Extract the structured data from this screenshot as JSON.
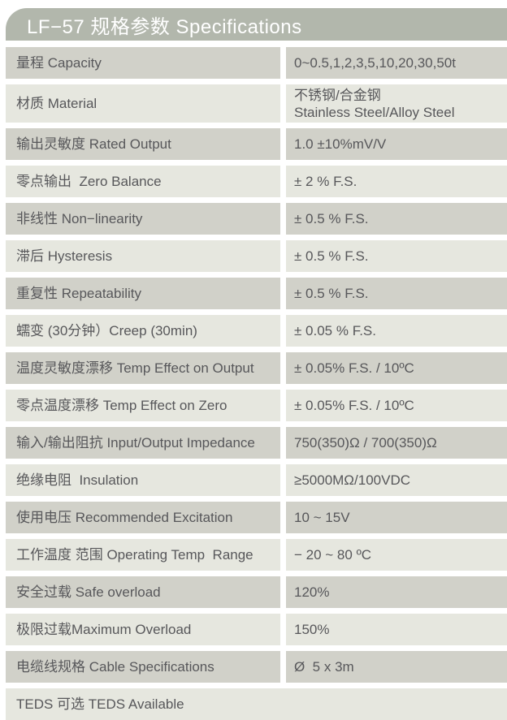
{
  "header": {
    "title": "LF−57 规格参数 Specifications"
  },
  "table": {
    "rows": [
      {
        "label": "量程 Capacity",
        "value": "0~0.5,1,2,3,5,10,20,30,50t"
      },
      {
        "label": "材质 Material",
        "value": [
          "不锈钢/合金钢",
          "Stainless Steel/Alloy Steel"
        ],
        "tall": true
      },
      {
        "label": "输出灵敏度 Rated Output",
        "value": "1.0 ±10%mV/V"
      },
      {
        "label": "零点输出  Zero Balance",
        "value": "± 2 % F.S."
      },
      {
        "label": "非线性 Non−linearity",
        "value": "± 0.5 % F.S."
      },
      {
        "label": "滞后 Hysteresis",
        "value": "± 0.5 % F.S."
      },
      {
        "label": "重复性 Repeatability",
        "value": "± 0.5 % F.S."
      },
      {
        "label": "蠕变 (30分钟）Creep (30min)",
        "value": "± 0.05 % F.S."
      },
      {
        "label": "温度灵敏度漂移 Temp Effect on Output",
        "value": "± 0.05% F.S. / 10ºC"
      },
      {
        "label": "零点温度漂移 Temp Effect on Zero",
        "value": "± 0.05% F.S. / 10ºC"
      },
      {
        "label": "输入/输出阻抗 Input/Output Impedance",
        "value": "750(350)Ω / 700(350)Ω"
      },
      {
        "label": "绝缘电阻  Insulation",
        "value": "≥5000MΩ/100VDC"
      },
      {
        "label": "使用电压 Recommended Excitation",
        "value": "10 ~ 15V"
      },
      {
        "label": "工作温度 范围 Operating Temp  Range",
        "value": "− 20 ~ 80 ºC"
      },
      {
        "label": "安全过载 Safe overload",
        "value": "120%"
      },
      {
        "label": "极限过载Maximum Overload",
        "value": "150%"
      },
      {
        "label": "电缆线规格 Cable Specifications",
        "value": "Ø  5 x 3m"
      },
      {
        "label": "TEDS 可选 TEDS Available",
        "value": null,
        "full_width": true
      }
    ]
  },
  "colors": {
    "header_bg": "#b2b7ac",
    "header_text": "#ffffff",
    "row_dark": "#d1d1c9",
    "row_light": "#e6e7df",
    "text": "#57575a",
    "background": "#ffffff"
  }
}
